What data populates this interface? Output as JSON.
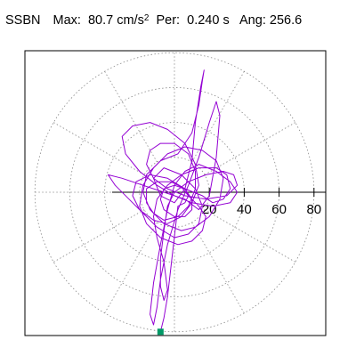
{
  "header": {
    "station": "SSBN",
    "max_label": "Max:",
    "max_value": "80.7",
    "max_unit": "cm/s",
    "max_unit_exp": "2",
    "per_label": "Per:",
    "per_value": "0.240 s",
    "ang_label": "Ang:",
    "ang_value": "256.6"
  },
  "chart_data": {
    "type": "scatter",
    "title": "SSBN   Max:  80.7 cm/s2  Per:  0.240 s   Ang: 256.6",
    "xlabel": "",
    "ylabel": "",
    "tick_labels": [
      "20",
      "40",
      "60",
      "80"
    ],
    "radial_ticks": [
      20,
      40,
      60,
      80
    ],
    "rmax": 80.7,
    "peak_angle_deg": 256.6,
    "spoke_angles_deg": [
      0,
      30,
      60,
      90,
      120,
      150,
      180,
      210,
      240,
      270,
      300,
      330
    ],
    "grid": true,
    "colors": {
      "trace": "#9400d3",
      "marker": "#009966",
      "grid": "#888888"
    },
    "trace": [
      [
        0,
        0
      ],
      [
        4,
        3
      ],
      [
        8,
        -2
      ],
      [
        14,
        -8
      ],
      [
        18,
        -14
      ],
      [
        16,
        -22
      ],
      [
        10,
        -28
      ],
      [
        2,
        -30
      ],
      [
        -8,
        -26
      ],
      [
        -16,
        -18
      ],
      [
        -20,
        -8
      ],
      [
        -18,
        4
      ],
      [
        -12,
        14
      ],
      [
        -4,
        22
      ],
      [
        6,
        26
      ],
      [
        16,
        24
      ],
      [
        24,
        18
      ],
      [
        28,
        8
      ],
      [
        26,
        -4
      ],
      [
        20,
        -14
      ],
      [
        12,
        -20
      ],
      [
        4,
        -22
      ],
      [
        -6,
        -18
      ],
      [
        -14,
        -10
      ],
      [
        -18,
        0
      ],
      [
        -16,
        10
      ],
      [
        -8,
        18
      ],
      [
        2,
        22
      ],
      [
        10,
        34
      ],
      [
        14,
        50
      ],
      [
        16,
        64
      ],
      [
        17,
        70
      ],
      [
        15,
        60
      ],
      [
        12,
        40
      ],
      [
        10,
        18
      ],
      [
        6,
        2
      ],
      [
        0,
        -6
      ],
      [
        -8,
        -2
      ],
      [
        -12,
        8
      ],
      [
        -6,
        14
      ],
      [
        4,
        10
      ],
      [
        12,
        2
      ],
      [
        16,
        -8
      ],
      [
        14,
        -18
      ],
      [
        8,
        -24
      ],
      [
        0,
        -26
      ],
      [
        -10,
        -20
      ],
      [
        -18,
        -12
      ],
      [
        -26,
        -4
      ],
      [
        -34,
        4
      ],
      [
        -38,
        10
      ],
      [
        -30,
        8
      ],
      [
        -18,
        4
      ],
      [
        -6,
        0
      ],
      [
        6,
        -4
      ],
      [
        14,
        -10
      ],
      [
        20,
        -2
      ],
      [
        24,
        20
      ],
      [
        26,
        44
      ],
      [
        24,
        52
      ],
      [
        20,
        40
      ],
      [
        14,
        20
      ],
      [
        8,
        4
      ],
      [
        2,
        -10
      ],
      [
        -4,
        -30
      ],
      [
        -8,
        -50
      ],
      [
        -10,
        -66
      ],
      [
        -12,
        -76
      ],
      [
        -14,
        -70
      ],
      [
        -12,
        -52
      ],
      [
        -8,
        -30
      ],
      [
        -4,
        -10
      ],
      [
        0,
        4
      ],
      [
        6,
        12
      ],
      [
        14,
        16
      ],
      [
        24,
        12
      ],
      [
        32,
        6
      ],
      [
        36,
        0
      ],
      [
        32,
        -6
      ],
      [
        22,
        -8
      ],
      [
        10,
        -6
      ],
      [
        0,
        -2
      ],
      [
        -10,
        4
      ],
      [
        -20,
        12
      ],
      [
        -28,
        22
      ],
      [
        -30,
        32
      ],
      [
        -24,
        38
      ],
      [
        -14,
        40
      ],
      [
        -4,
        36
      ],
      [
        6,
        28
      ],
      [
        12,
        16
      ],
      [
        14,
        4
      ],
      [
        10,
        -6
      ],
      [
        4,
        -14
      ],
      [
        -4,
        -18
      ],
      [
        -12,
        -16
      ],
      [
        -20,
        -10
      ],
      [
        -24,
        -2
      ],
      [
        -22,
        6
      ],
      [
        -14,
        10
      ],
      [
        -4,
        8
      ],
      [
        6,
        2
      ],
      [
        16,
        -2
      ],
      [
        22,
        -6
      ],
      [
        28,
        -4
      ],
      [
        32,
        2
      ],
      [
        30,
        10
      ],
      [
        24,
        14
      ],
      [
        14,
        14
      ],
      [
        4,
        10
      ],
      [
        -4,
        4
      ],
      [
        -10,
        -4
      ],
      [
        -12,
        -14
      ],
      [
        -10,
        -26
      ],
      [
        -6,
        -40
      ],
      [
        -4,
        -56
      ],
      [
        -6,
        -62
      ],
      [
        -8,
        -54
      ],
      [
        -8,
        -38
      ],
      [
        -6,
        -22
      ],
      [
        -4,
        -8
      ],
      [
        0,
        0
      ],
      [
        8,
        6
      ],
      [
        18,
        10
      ],
      [
        28,
        12
      ],
      [
        34,
        10
      ],
      [
        36,
        4
      ],
      [
        30,
        -2
      ],
      [
        18,
        -4
      ],
      [
        6,
        -2
      ],
      [
        -4,
        2
      ],
      [
        -12,
        8
      ],
      [
        -16,
        16
      ],
      [
        -14,
        24
      ],
      [
        -8,
        28
      ],
      [
        0,
        28
      ],
      [
        8,
        22
      ],
      [
        12,
        12
      ],
      [
        12,
        2
      ],
      [
        8,
        -8
      ],
      [
        2,
        -14
      ],
      [
        -6,
        -16
      ],
      [
        -12,
        -12
      ],
      [
        -16,
        -6
      ],
      [
        -16,
        2
      ],
      [
        -10,
        6
      ],
      [
        -2,
        6
      ],
      [
        6,
        2
      ],
      [
        10,
        -4
      ],
      [
        10,
        -10
      ],
      [
        6,
        -14
      ],
      [
        0,
        -14
      ],
      [
        -6,
        -10
      ],
      [
        -8,
        -4
      ],
      [
        -6,
        2
      ],
      [
        0,
        4
      ],
      [
        6,
        2
      ],
      [
        8,
        -2
      ],
      [
        6,
        -6
      ],
      [
        2,
        -8
      ],
      [
        -4,
        -60
      ],
      [
        -6,
        -72
      ],
      [
        -8,
        -80
      ]
    ],
    "peak_marker": [
      -8,
      -80
    ]
  }
}
